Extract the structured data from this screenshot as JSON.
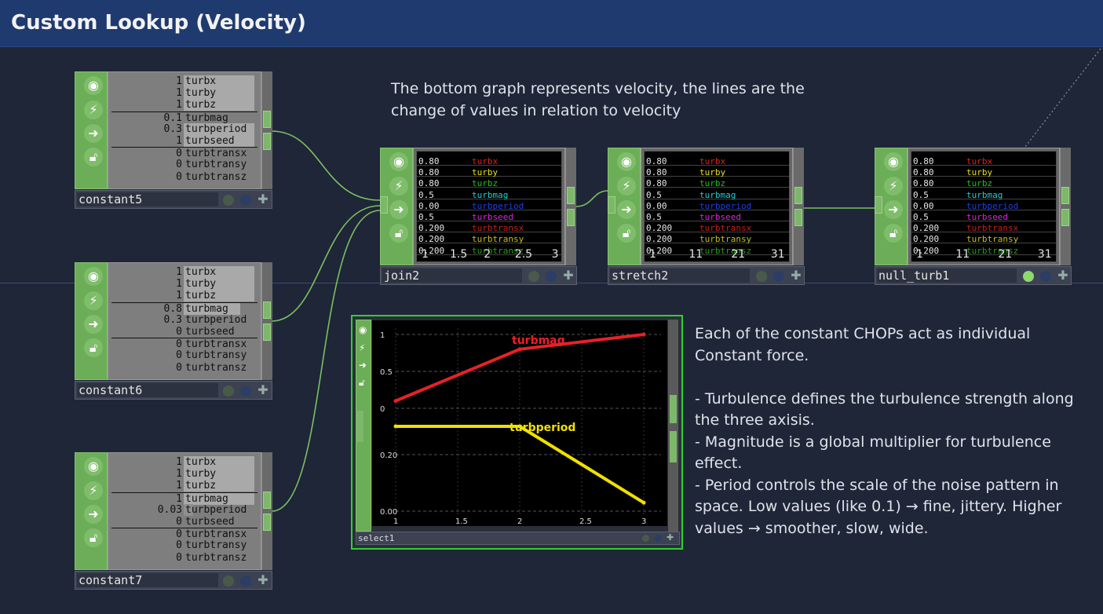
{
  "header": {
    "title": "Custom Lookup (Velocity)"
  },
  "notes": {
    "top": "The bottom graph represents velocity, the lines are the\nchange of values in relation to velocity",
    "right": "Each of the constant CHOPs act as individual\nConstant force.\n\n- Turbulence defines the turbulence strength along\nthe three axisis.\n- Magnitude is a global multiplier for turbulence\neffect.\n- Period controls the scale of the noise pattern in\nspace. Low values (like 0.1) → fine, jittery. Higher\nvalues → smoother, slow, wide."
  },
  "constants": [
    {
      "name": "constant5",
      "rows": [
        {
          "v": "1",
          "n": "turbx"
        },
        {
          "v": "1",
          "n": "turby"
        },
        {
          "v": "1",
          "n": "turbz"
        },
        {
          "v": "0.1",
          "n": "turbmag"
        },
        {
          "v": "0.3",
          "n": "turbperiod"
        },
        {
          "v": "1",
          "n": "turbseed"
        },
        {
          "v": "0",
          "n": "turbtransx"
        },
        {
          "v": "0",
          "n": "turbtransy"
        },
        {
          "v": "0",
          "n": "turbtransz"
        }
      ]
    },
    {
      "name": "constant6",
      "rows": [
        {
          "v": "1",
          "n": "turbx"
        },
        {
          "v": "1",
          "n": "turby"
        },
        {
          "v": "1",
          "n": "turbz"
        },
        {
          "v": "0.8",
          "n": "turbmag"
        },
        {
          "v": "0.3",
          "n": "turbperiod"
        },
        {
          "v": "0",
          "n": "turbseed"
        },
        {
          "v": "0",
          "n": "turbtransx"
        },
        {
          "v": "0",
          "n": "turbtransy"
        },
        {
          "v": "0",
          "n": "turbtransz"
        }
      ]
    },
    {
      "name": "constant7",
      "rows": [
        {
          "v": "1",
          "n": "turbx"
        },
        {
          "v": "1",
          "n": "turby"
        },
        {
          "v": "1",
          "n": "turbz"
        },
        {
          "v": "1",
          "n": "turbmag"
        },
        {
          "v": "0.03",
          "n": "turbperiod"
        },
        {
          "v": "0",
          "n": "turbseed"
        },
        {
          "v": "0",
          "n": "turbtransx"
        },
        {
          "v": "0",
          "n": "turbtransy"
        },
        {
          "v": "0",
          "n": "turbtransz"
        }
      ]
    }
  ],
  "chops": [
    {
      "name": "join2",
      "axis": [
        "1",
        "1.5",
        "2",
        "2.5",
        "3"
      ]
    },
    {
      "name": "stretch2",
      "axis": [
        "1",
        "11",
        "21",
        "31"
      ]
    },
    {
      "name": "null_turb1",
      "axis": [
        "1",
        "11",
        "21",
        "31"
      ]
    }
  ],
  "viewer_rows": [
    {
      "v": "0.80",
      "n": "turbx",
      "color": "#e02020"
    },
    {
      "v": "0.80",
      "n": "turby",
      "color": "#e0e020"
    },
    {
      "v": "0.80",
      "n": "turbz",
      "color": "#20c020"
    },
    {
      "v": "0.5",
      "n": "turbmag",
      "color": "#20d0d0"
    },
    {
      "v": "0.00",
      "n": "turbperiod",
      "color": "#2040e0"
    },
    {
      "v": "0.5",
      "n": "turbseed",
      "color": "#e020e0"
    },
    {
      "v": "0.200",
      "n": "turbtransx",
      "color": "#c02020"
    },
    {
      "v": "0.200",
      "n": "turbtransy",
      "color": "#c0c020"
    },
    {
      "v": "0.200",
      "n": "turbtransz",
      "color": "#20a020"
    }
  ],
  "select1": {
    "name": "select1",
    "chart_data": {
      "type": "line",
      "x": [
        1,
        2,
        3
      ],
      "xticks": [
        "1",
        "1.5",
        "2",
        "2.5",
        "3"
      ],
      "series": [
        {
          "name": "turbmag",
          "values": [
            0.1,
            0.8,
            1
          ],
          "color": "#e8202a",
          "yticks": [
            "1",
            "0.5",
            "0"
          ],
          "ylim": [
            0,
            1
          ]
        },
        {
          "name": "turbperiod",
          "values": [
            0.3,
            0.3,
            0.03
          ],
          "color": "#f0e000",
          "yticks": [
            "0.20",
            "0.00"
          ],
          "ylim": [
            0,
            0.3
          ]
        }
      ]
    }
  }
}
